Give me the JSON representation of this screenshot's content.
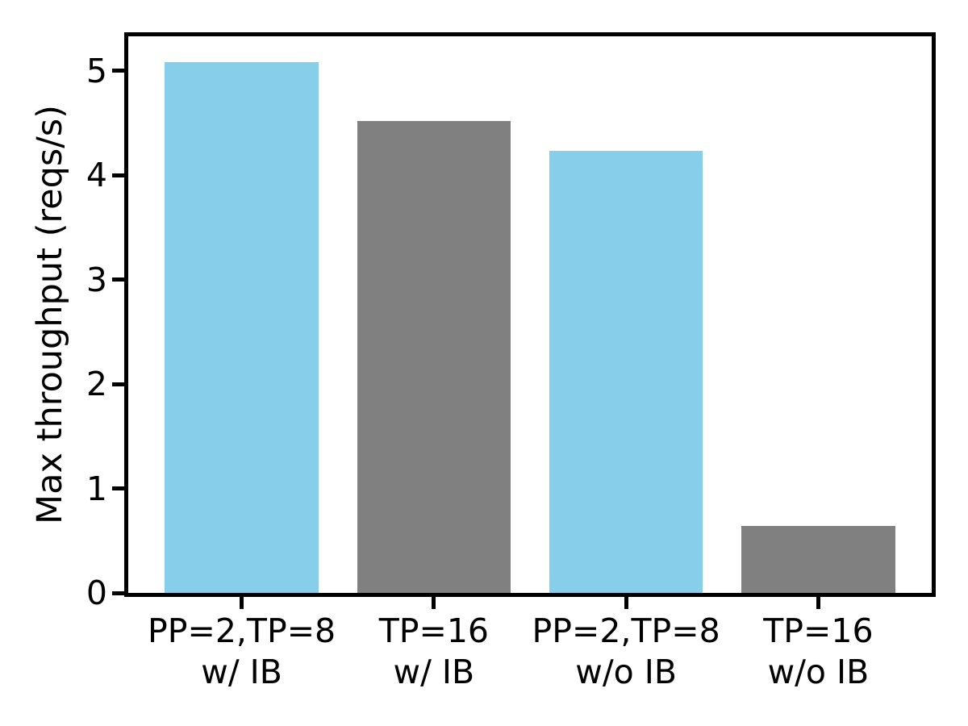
{
  "chart_data": {
    "type": "bar",
    "categories": [
      "PP=2,TP=8\nw/ IB",
      "TP=16\nw/ IB",
      "PP=2,TP=8\nw/o IB",
      "TP=16\nw/o IB"
    ],
    "values": [
      5.08,
      4.52,
      4.23,
      0.64
    ],
    "bar_colors": [
      "#87CEEB",
      "#808080",
      "#87CEEB",
      "#808080"
    ],
    "title": "",
    "xlabel": "",
    "ylabel": "Max throughput (reqs/s)",
    "ylim": [
      0,
      5.33
    ],
    "yticks": [
      0,
      1,
      2,
      3,
      4,
      5
    ],
    "ytick_labels": [
      "0",
      "1",
      "2",
      "3",
      "4",
      "5"
    ],
    "xlim": [
      -0.59,
      3.59
    ],
    "bar_width": 0.8,
    "grid": false,
    "legend": "none",
    "axis_color": "#000000",
    "background_color": "#ffffff"
  }
}
